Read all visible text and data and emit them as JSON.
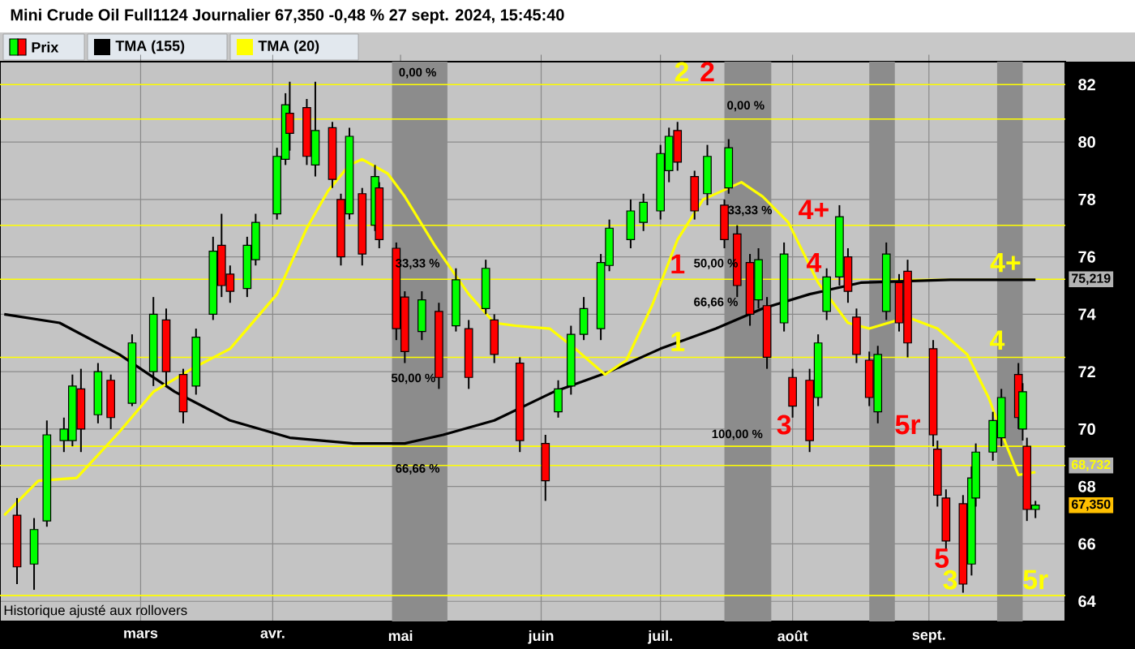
{
  "chart_data": {
    "type": "candlestick",
    "title": "Mini Crude Oil Full1124 Journalier 67,350 -0,48 % 27 sept. 2024, 15:45:40",
    "legend": "top left",
    "grid": true,
    "xlim": [
      "2024-01-28",
      "2024-10-04"
    ],
    "xticks": [
      {
        "value": "2024-03-01",
        "label": "mars"
      },
      {
        "value": "2024-04-01",
        "label": "avr."
      },
      {
        "value": "2024-05-01",
        "label": "mai"
      },
      {
        "value": "2024-06-03",
        "label": "juin"
      },
      {
        "value": "2024-07-01",
        "label": "juil."
      },
      {
        "value": "2024-08-01",
        "label": "août"
      },
      {
        "value": "2024-09-02",
        "label": "sept."
      }
    ],
    "ylim": [
      63.3,
      82.8
    ],
    "yticks": [
      64,
      66,
      68,
      70,
      72,
      74,
      76,
      78,
      80,
      82
    ],
    "series": [
      {
        "name": "Prix",
        "x": [
          "2024-02-01",
          "2024-02-05",
          "2024-02-08",
          "2024-02-12",
          "2024-02-14",
          "2024-02-16",
          "2024-02-20",
          "2024-02-23",
          "2024-02-28",
          "2024-03-04",
          "2024-03-07",
          "2024-03-11",
          "2024-03-14",
          "2024-03-18",
          "2024-03-20",
          "2024-03-22",
          "2024-03-26",
          "2024-03-28",
          "2024-04-02",
          "2024-04-04",
          "2024-04-05",
          "2024-04-09",
          "2024-04-11",
          "2024-04-15",
          "2024-04-17",
          "2024-04-19",
          "2024-04-22",
          "2024-04-25",
          "2024-04-26",
          "2024-04-30",
          "2024-05-02",
          "2024-05-06",
          "2024-05-10",
          "2024-05-14",
          "2024-05-17",
          "2024-05-21",
          "2024-05-23",
          "2024-05-29",
          "2024-06-04",
          "2024-06-07",
          "2024-06-10",
          "2024-06-13",
          "2024-06-17",
          "2024-06-19",
          "2024-06-24",
          "2024-06-27",
          "2024-07-01",
          "2024-07-03",
          "2024-07-05",
          "2024-07-09",
          "2024-07-12",
          "2024-07-16",
          "2024-07-17",
          "2024-07-19",
          "2024-07-22",
          "2024-07-24",
          "2024-07-26",
          "2024-07-30",
          "2024-08-01",
          "2024-08-05",
          "2024-08-07",
          "2024-08-09",
          "2024-08-12",
          "2024-08-14",
          "2024-08-16",
          "2024-08-19",
          "2024-08-21",
          "2024-08-23",
          "2024-08-26",
          "2024-08-28",
          "2024-09-03",
          "2024-09-04",
          "2024-09-06",
          "2024-09-10",
          "2024-09-12",
          "2024-09-13",
          "2024-09-17",
          "2024-09-19",
          "2024-09-23",
          "2024-09-24",
          "2024-09-25",
          "2024-09-27"
        ],
        "ohlc": [
          [
            67.0,
            67.6,
            64.6,
            65.2
          ],
          [
            65.3,
            66.9,
            64.4,
            66.5
          ],
          [
            66.8,
            70.3,
            66.6,
            69.8
          ],
          [
            69.6,
            70.4,
            69.2,
            70.0
          ],
          [
            69.6,
            71.9,
            69.4,
            71.5
          ],
          [
            71.4,
            72.1,
            69.2,
            70.0
          ],
          [
            70.5,
            72.3,
            70.2,
            72.0
          ],
          [
            71.7,
            71.9,
            70.0,
            70.4
          ],
          [
            70.9,
            73.3,
            70.8,
            73.0
          ],
          [
            72.0,
            74.6,
            71.5,
            74.0
          ],
          [
            73.8,
            74.2,
            71.5,
            72.0
          ],
          [
            71.9,
            72.1,
            70.2,
            70.6
          ],
          [
            71.5,
            73.5,
            71.2,
            73.2
          ],
          [
            74.0,
            76.7,
            73.8,
            76.2
          ],
          [
            76.4,
            77.5,
            74.6,
            75.0
          ],
          [
            75.4,
            75.7,
            74.4,
            74.8
          ],
          [
            74.9,
            76.7,
            74.6,
            76.4
          ],
          [
            75.9,
            77.5,
            75.7,
            77.2
          ],
          [
            77.5,
            79.8,
            77.3,
            79.5
          ],
          [
            79.4,
            81.7,
            79.2,
            81.3
          ],
          [
            81.0,
            82.1,
            79.7,
            80.3
          ],
          [
            81.2,
            81.5,
            79.2,
            79.5
          ],
          [
            79.2,
            82.1,
            78.8,
            80.4
          ],
          [
            80.5,
            80.7,
            78.4,
            78.7
          ],
          [
            78.0,
            78.2,
            75.7,
            76.0
          ],
          [
            77.5,
            80.5,
            77.3,
            80.2
          ],
          [
            78.2,
            78.4,
            75.7,
            76.1
          ],
          [
            77.1,
            79.2,
            76.9,
            78.8
          ],
          [
            78.4,
            78.6,
            76.3,
            76.6
          ],
          [
            76.3,
            76.5,
            73.1,
            73.5
          ],
          [
            74.6,
            74.8,
            72.3,
            72.7
          ],
          [
            73.4,
            74.8,
            73.1,
            74.5
          ],
          [
            74.1,
            74.4,
            71.4,
            71.8
          ],
          [
            73.6,
            75.6,
            73.4,
            75.2
          ],
          [
            73.5,
            73.8,
            71.4,
            71.8
          ],
          [
            74.2,
            75.9,
            74.0,
            75.6
          ],
          [
            73.8,
            74.0,
            72.3,
            72.6
          ],
          [
            72.3,
            72.5,
            69.2,
            69.6
          ],
          [
            69.5,
            69.8,
            67.5,
            68.2
          ],
          [
            70.6,
            71.7,
            70.4,
            71.4
          ],
          [
            71.5,
            73.6,
            71.2,
            73.3
          ],
          [
            73.3,
            74.6,
            73.1,
            74.2
          ],
          [
            73.5,
            76.1,
            73.1,
            75.8
          ],
          [
            75.7,
            77.3,
            75.5,
            77.0
          ],
          [
            76.6,
            78.0,
            76.3,
            77.6
          ],
          [
            77.2,
            78.2,
            76.9,
            77.9
          ],
          [
            77.6,
            79.9,
            77.3,
            79.6
          ],
          [
            79.0,
            80.5,
            78.6,
            80.2
          ],
          [
            80.4,
            80.7,
            79.0,
            79.3
          ],
          [
            78.8,
            79.0,
            77.3,
            77.6
          ],
          [
            78.2,
            79.9,
            77.8,
            79.5
          ],
          [
            77.8,
            78.0,
            76.3,
            76.6
          ],
          [
            78.4,
            80.1,
            78.2,
            79.8
          ],
          [
            76.8,
            77.1,
            74.6,
            75.0
          ],
          [
            75.8,
            76.1,
            73.6,
            74.0
          ],
          [
            74.5,
            76.3,
            74.2,
            75.9
          ],
          [
            74.3,
            74.6,
            72.1,
            72.5
          ],
          [
            73.7,
            76.5,
            73.4,
            76.1
          ],
          [
            71.8,
            72.1,
            70.4,
            70.8
          ],
          [
            71.7,
            72.1,
            69.2,
            69.6
          ],
          [
            71.1,
            73.3,
            70.8,
            73.0
          ],
          [
            74.1,
            75.6,
            73.8,
            75.3
          ],
          [
            75.3,
            77.8,
            75.0,
            77.4
          ],
          [
            76.0,
            76.3,
            74.4,
            74.8
          ],
          [
            73.9,
            74.2,
            72.3,
            72.6
          ],
          [
            72.4,
            72.7,
            70.8,
            71.1
          ],
          [
            70.6,
            72.9,
            70.2,
            72.6
          ],
          [
            74.1,
            76.5,
            73.8,
            76.1
          ],
          [
            75.1,
            75.4,
            73.4,
            73.7
          ],
          [
            75.5,
            75.9,
            72.5,
            73.0
          ],
          [
            72.8,
            73.1,
            69.4,
            69.8
          ],
          [
            69.3,
            69.6,
            67.3,
            67.7
          ],
          [
            67.6,
            67.9,
            65.8,
            66.1
          ],
          [
            67.4,
            67.7,
            64.3,
            64.6
          ],
          [
            65.3,
            68.7,
            64.9,
            68.3
          ],
          [
            67.6,
            69.5,
            67.3,
            69.2
          ],
          [
            69.2,
            70.6,
            68.9,
            70.3
          ],
          [
            69.7,
            71.4,
            69.4,
            71.1
          ],
          [
            71.9,
            72.3,
            70.0,
            70.4
          ],
          [
            70.0,
            71.6,
            69.6,
            71.3
          ],
          [
            69.4,
            69.7,
            66.8,
            67.2
          ],
          [
            67.2,
            67.5,
            66.9,
            67.35
          ]
        ]
      },
      {
        "name": "TMA (155)",
        "type": "line",
        "color": "#000000",
        "x": [
          "2024-01-29",
          "2024-02-11",
          "2024-02-25",
          "2024-03-09",
          "2024-03-22",
          "2024-04-05",
          "2024-04-20",
          "2024-05-02",
          "2024-05-11",
          "2024-05-23",
          "2024-06-06",
          "2024-06-19",
          "2024-07-01",
          "2024-07-14",
          "2024-07-25",
          "2024-08-05",
          "2024-08-17",
          "2024-09-07",
          "2024-09-27"
        ],
        "values": [
          74.0,
          73.7,
          72.6,
          71.3,
          70.3,
          69.7,
          69.5,
          69.5,
          69.8,
          70.3,
          71.3,
          72.0,
          72.8,
          73.5,
          74.2,
          74.7,
          75.1,
          75.2,
          75.2
        ]
      },
      {
        "name": "TMA (20)",
        "type": "line",
        "color": "#ffff00",
        "x": [
          "2024-01-29",
          "2024-02-06",
          "2024-02-15",
          "2024-02-25",
          "2024-03-04",
          "2024-03-13",
          "2024-03-22",
          "2024-04-02",
          "2024-04-09",
          "2024-04-14",
          "2024-04-19",
          "2024-04-22",
          "2024-04-28",
          "2024-05-02",
          "2024-05-09",
          "2024-05-17",
          "2024-05-23",
          "2024-05-28",
          "2024-06-05",
          "2024-06-11",
          "2024-06-18",
          "2024-06-23",
          "2024-06-29",
          "2024-07-05",
          "2024-07-11",
          "2024-07-20",
          "2024-07-25",
          "2024-07-31",
          "2024-08-07",
          "2024-08-14",
          "2024-08-19",
          "2024-08-28",
          "2024-09-04",
          "2024-09-11",
          "2024-09-16",
          "2024-09-20",
          "2024-09-23",
          "2024-09-27"
        ],
        "values": [
          67.0,
          68.2,
          68.3,
          69.9,
          71.3,
          72.1,
          72.8,
          74.7,
          77.0,
          78.3,
          79.2,
          79.4,
          78.9,
          78.1,
          76.4,
          74.7,
          73.7,
          73.6,
          73.5,
          72.8,
          71.9,
          72.4,
          74.3,
          76.6,
          78.0,
          78.6,
          78.1,
          77.2,
          75.1,
          73.7,
          73.5,
          73.9,
          73.5,
          72.6,
          71.1,
          69.5,
          68.4,
          68.5
        ]
      }
    ],
    "ref_lines": [
      {
        "axis": "y",
        "value": 82.0,
        "color": "#ffff00"
      },
      {
        "axis": "y",
        "value": 80.8,
        "color": "#ffff00"
      },
      {
        "axis": "y",
        "value": 77.1,
        "color": "#ffff00"
      },
      {
        "axis": "y",
        "value": 75.219,
        "color": "#ffff00"
      },
      {
        "axis": "y",
        "value": 72.5,
        "color": "#ffff00"
      },
      {
        "axis": "y",
        "value": 69.4,
        "color": "#ffff00"
      },
      {
        "axis": "y",
        "value": 68.732,
        "color": "#ffff00"
      },
      {
        "axis": "y",
        "value": 64.2,
        "color": "#ffff00"
      }
    ],
    "bands": [
      {
        "axis": "x",
        "from": "2024-04-29",
        "to": "2024-05-12",
        "color": "#8c8c8c"
      },
      {
        "axis": "x",
        "from": "2024-07-16",
        "to": "2024-07-27",
        "color": "#8c8c8c"
      },
      {
        "axis": "x",
        "from": "2024-08-19",
        "to": "2024-08-25",
        "color": "#8c8c8c"
      },
      {
        "axis": "x",
        "from": "2024-09-18",
        "to": "2024-09-24",
        "color": "#8c8c8c"
      }
    ],
    "annotations": [
      "Historique ajusté aux rollovers",
      "0,00 %",
      "33,33 %",
      "50,00 %",
      "66,66 %",
      "0,00 %",
      "33,33 %",
      "50,00 %",
      "66,66 %",
      "100,00 %",
      "2",
      "2",
      "1",
      "1",
      "4+",
      "4",
      "3",
      "5r",
      "4+",
      "4",
      "5",
      "3",
      "5r",
      "75,219",
      "68,732",
      "67,350"
    ]
  }
}
